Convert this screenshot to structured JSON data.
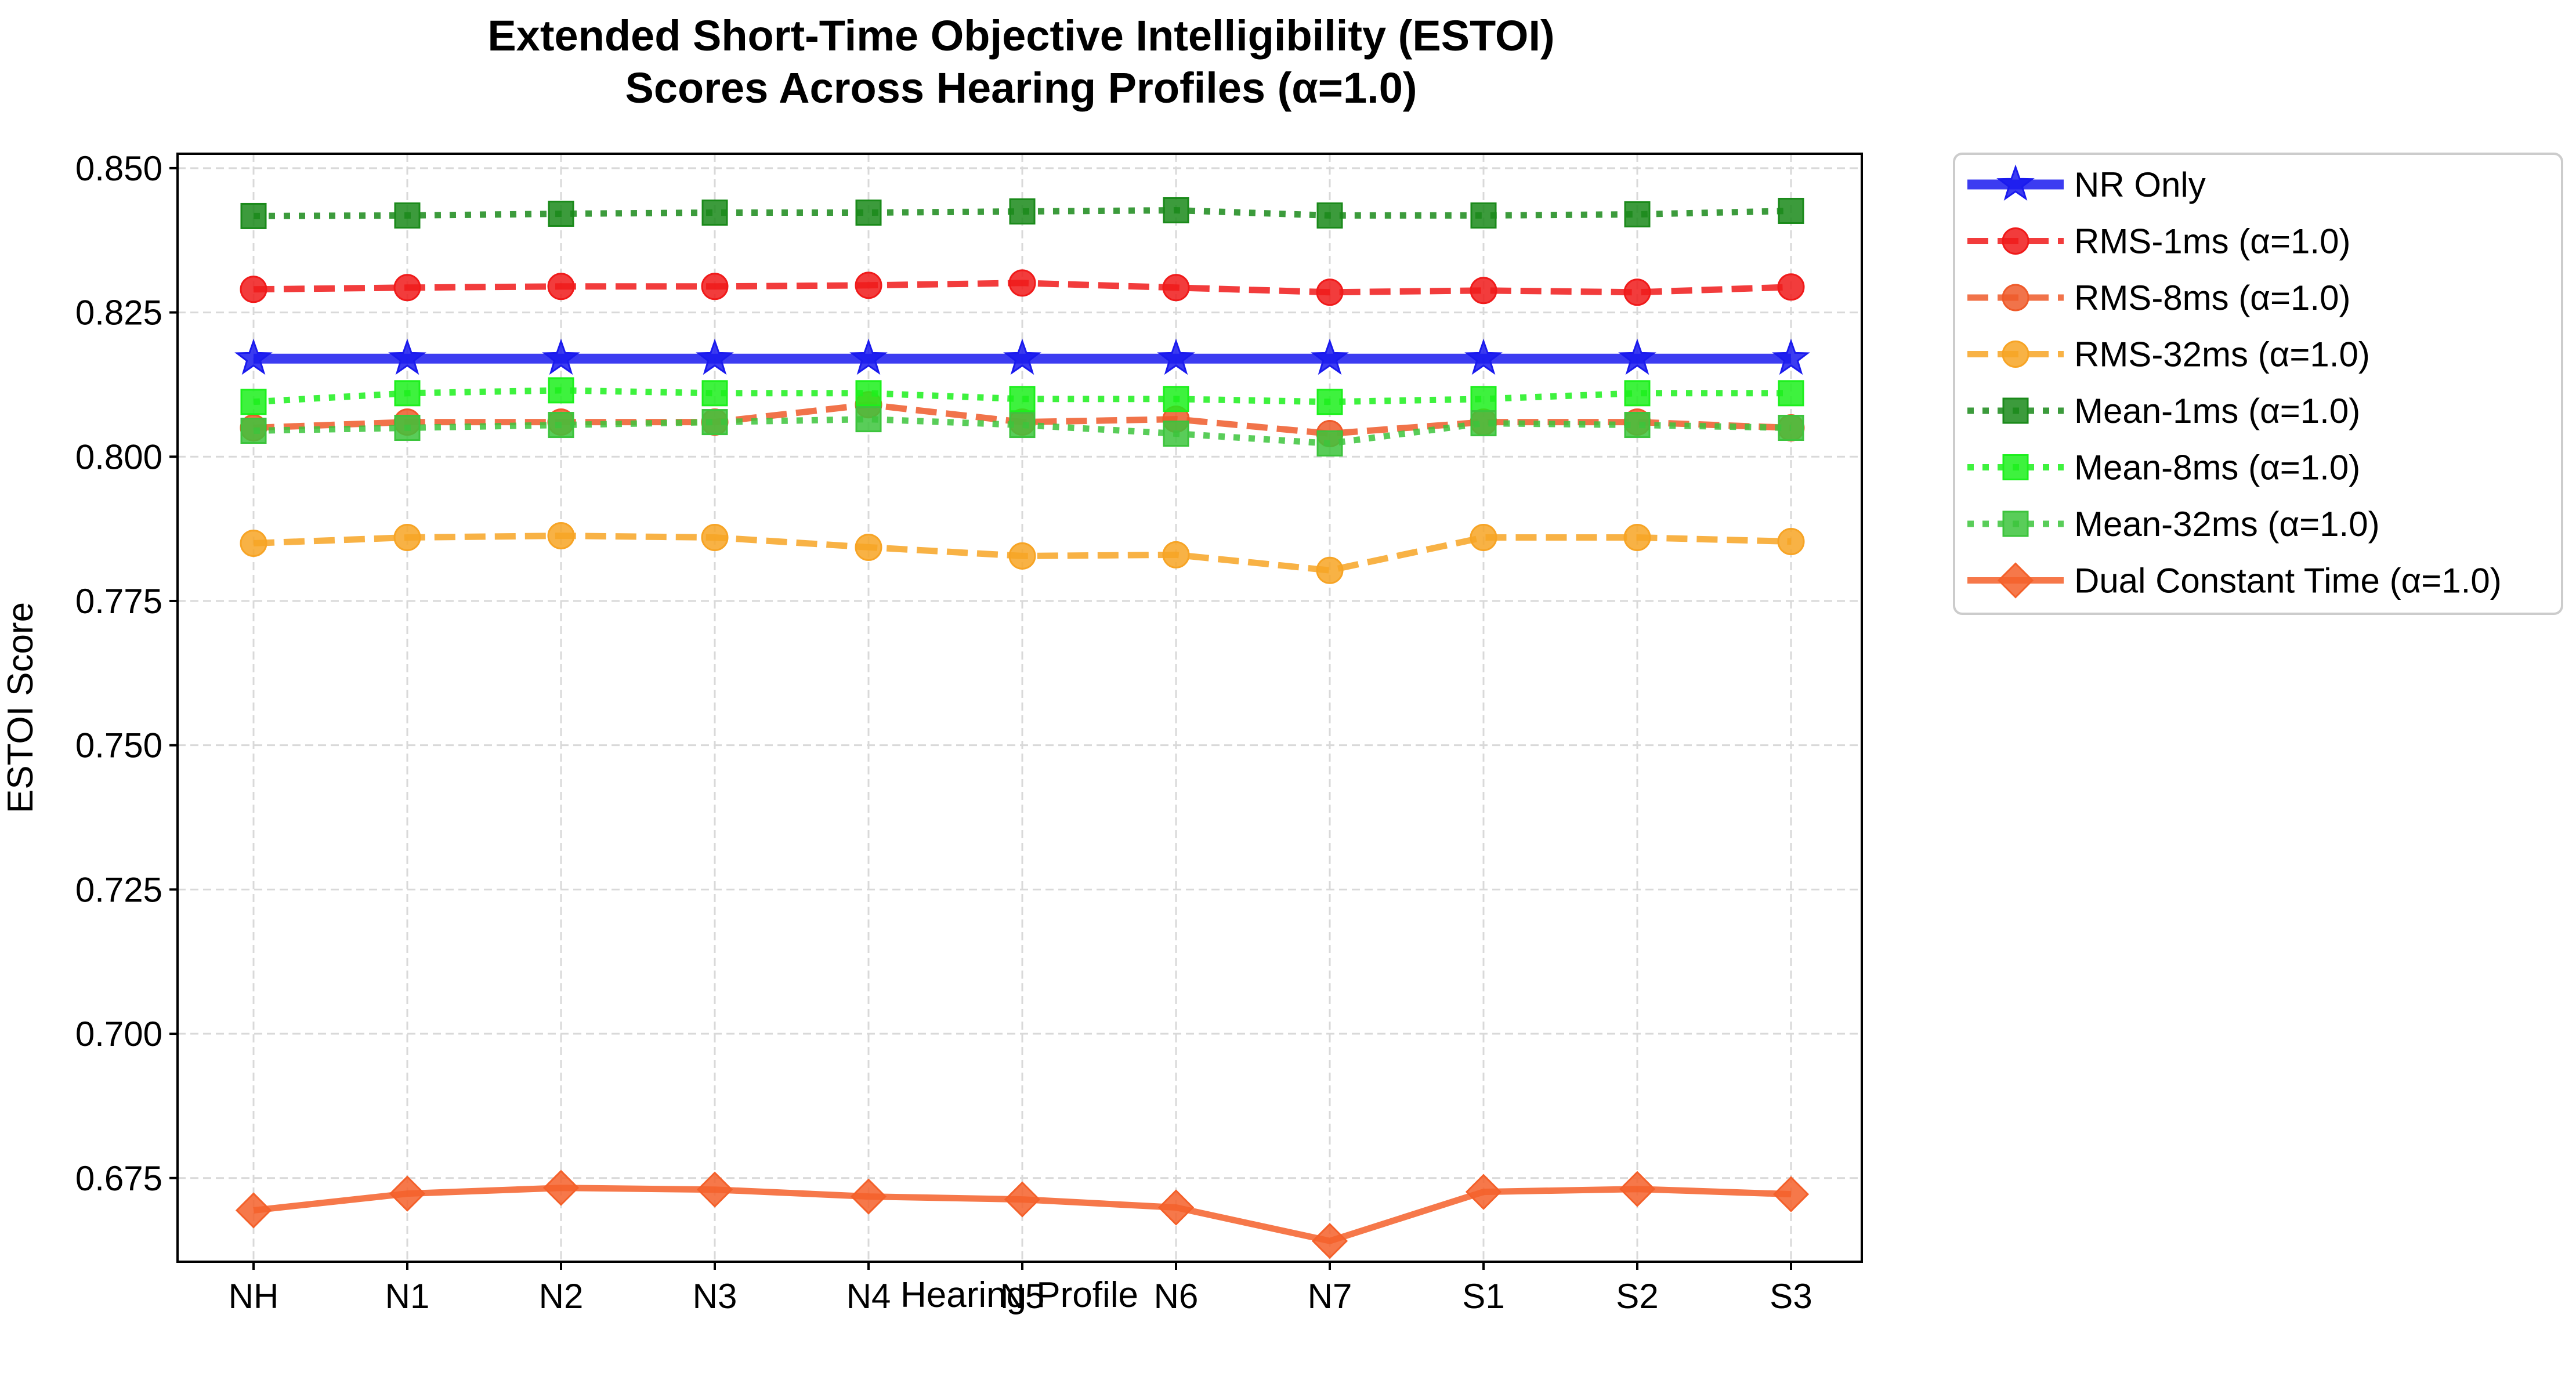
{
  "chart_data": {
    "type": "line",
    "title_lines": [
      "Extended Short-Time Objective Intelligibility (ESTOI)",
      "Scores Across Hearing Profiles (α=1.0)"
    ],
    "xlabel": "Hearing Profile",
    "ylabel": "ESTOI Score",
    "categories": [
      "NH",
      "N1",
      "N2",
      "N3",
      "N4",
      "N5",
      "N6",
      "N7",
      "S1",
      "S2",
      "S3"
    ],
    "ylim": [
      0.6605,
      0.8525
    ],
    "yticks": [
      0.675,
      0.7,
      0.725,
      0.75,
      0.775,
      0.8,
      0.825,
      0.85
    ],
    "ytick_labels": [
      "0.675",
      "0.700",
      "0.725",
      "0.750",
      "0.775",
      "0.800",
      "0.825",
      "0.850"
    ],
    "grid": true,
    "legend_position": "outside-right",
    "series": [
      {
        "name": "NR Only",
        "color": "#1a1aee",
        "marker": "star",
        "dash": "solid",
        "width": "thick",
        "values": [
          0.817,
          0.817,
          0.817,
          0.817,
          0.817,
          0.817,
          0.817,
          0.817,
          0.817,
          0.817,
          0.817
        ]
      },
      {
        "name": "RMS-1ms (α=1.0)",
        "color": "#f01a1a",
        "marker": "circle",
        "dash": "dashed",
        "width": "normal",
        "values": [
          0.829,
          0.8293,
          0.8295,
          0.8295,
          0.8297,
          0.8301,
          0.8293,
          0.8285,
          0.8288,
          0.8285,
          0.8294
        ]
      },
      {
        "name": "RMS-8ms (α=1.0)",
        "color": "#ef5a2a",
        "marker": "circle",
        "dash": "dashed",
        "width": "normal",
        "values": [
          0.805,
          0.806,
          0.806,
          0.806,
          0.809,
          0.806,
          0.8065,
          0.804,
          0.806,
          0.806,
          0.805
        ]
      },
      {
        "name": "RMS-32ms (α=1.0)",
        "color": "#f7a425",
        "marker": "circle",
        "dash": "dashed",
        "width": "normal",
        "values": [
          0.785,
          0.786,
          0.7863,
          0.786,
          0.7843,
          0.7828,
          0.783,
          0.7803,
          0.786,
          0.786,
          0.7853
        ]
      },
      {
        "name": "Mean-1ms (α=1.0)",
        "color": "#1a8a1a",
        "marker": "square",
        "dash": "dotted",
        "width": "normal",
        "values": [
          0.8417,
          0.8418,
          0.8421,
          0.8423,
          0.8423,
          0.8425,
          0.8427,
          0.8418,
          0.8418,
          0.842,
          0.8426
        ]
      },
      {
        "name": "Mean-8ms (α=1.0)",
        "color": "#1cf01c",
        "marker": "square",
        "dash": "dotted",
        "width": "normal",
        "values": [
          0.8095,
          0.811,
          0.8115,
          0.811,
          0.811,
          0.81,
          0.81,
          0.8095,
          0.81,
          0.811,
          0.811
        ]
      },
      {
        "name": "Mean-32ms (α=1.0)",
        "color": "#3cc43c",
        "marker": "square",
        "dash": "dotted",
        "width": "normal",
        "values": [
          0.8045,
          0.805,
          0.8055,
          0.806,
          0.8065,
          0.8055,
          0.804,
          0.8023,
          0.8058,
          0.8055,
          0.805
        ]
      },
      {
        "name": "Dual Constant Time (α=1.0)",
        "color": "#f4602a",
        "marker": "diamond",
        "dash": "solid",
        "width": "medium",
        "values": [
          0.6694,
          0.6723,
          0.6733,
          0.673,
          0.6718,
          0.6713,
          0.6699,
          0.6641,
          0.6726,
          0.6731,
          0.6722
        ]
      }
    ]
  }
}
